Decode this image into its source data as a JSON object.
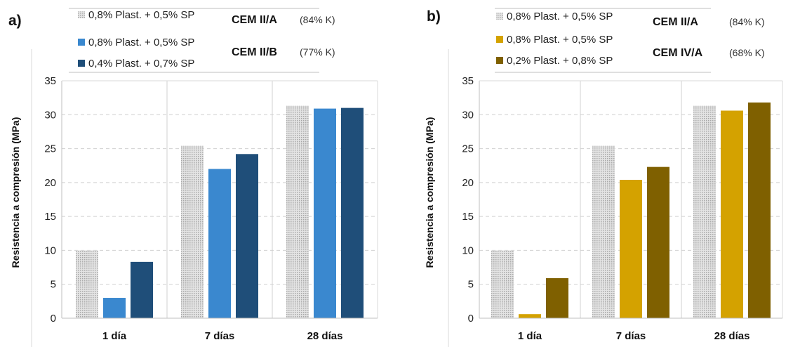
{
  "chart_data": [
    {
      "panel": "a)",
      "type": "bar",
      "ylabel": "Resistencia a compresión (MPa)",
      "xlabel": "",
      "ylim": [
        0,
        35
      ],
      "yticks": [
        0,
        5,
        10,
        15,
        20,
        25,
        30,
        35
      ],
      "grid": true,
      "categories": [
        "1 día",
        "7 días",
        "28 días"
      ],
      "series": [
        {
          "name": "0,8% Plast. + 0,5% SP",
          "color": "#c8c8c8",
          "pattern": "dots",
          "values": [
            10.0,
            25.4,
            31.3
          ]
        },
        {
          "name": "0,8% Plast. + 0,5% SP",
          "color": "#3a88cf",
          "pattern": "solid",
          "values": [
            3.0,
            22.0,
            30.9
          ]
        },
        {
          "name": "0,4% Plast. + 0,7% SP",
          "color": "#1f4e79",
          "pattern": "solid",
          "values": [
            8.3,
            24.2,
            31.0
          ]
        }
      ],
      "legend_groups": [
        {
          "cement": "CEM II/A",
          "note": "(84% K)"
        },
        {
          "cement": "CEM II/B",
          "note": "(77% K)"
        }
      ]
    },
    {
      "panel": "b)",
      "type": "bar",
      "ylabel": "Resistencia a compresión (MPa)",
      "xlabel": "",
      "ylim": [
        0,
        35
      ],
      "yticks": [
        0,
        5,
        10,
        15,
        20,
        25,
        30,
        35
      ],
      "grid": true,
      "categories": [
        "1 día",
        "7 días",
        "28 días"
      ],
      "series": [
        {
          "name": "0,8% Plast. + 0,5% SP",
          "color": "#c8c8c8",
          "pattern": "dots",
          "values": [
            10.0,
            25.4,
            31.3
          ]
        },
        {
          "name": "0,8% Plast. + 0,5% SP",
          "color": "#d4a200",
          "pattern": "solid",
          "values": [
            0.6,
            20.4,
            30.6
          ]
        },
        {
          "name": "0,2% Plast. + 0,8% SP",
          "color": "#7f6000",
          "pattern": "solid",
          "values": [
            5.9,
            22.3,
            31.8
          ]
        }
      ],
      "legend_groups": [
        {
          "cement": "CEM II/A",
          "note": "(84% K)"
        },
        {
          "cement": "CEM IV/A",
          "note": "(68% K)"
        }
      ]
    }
  ]
}
